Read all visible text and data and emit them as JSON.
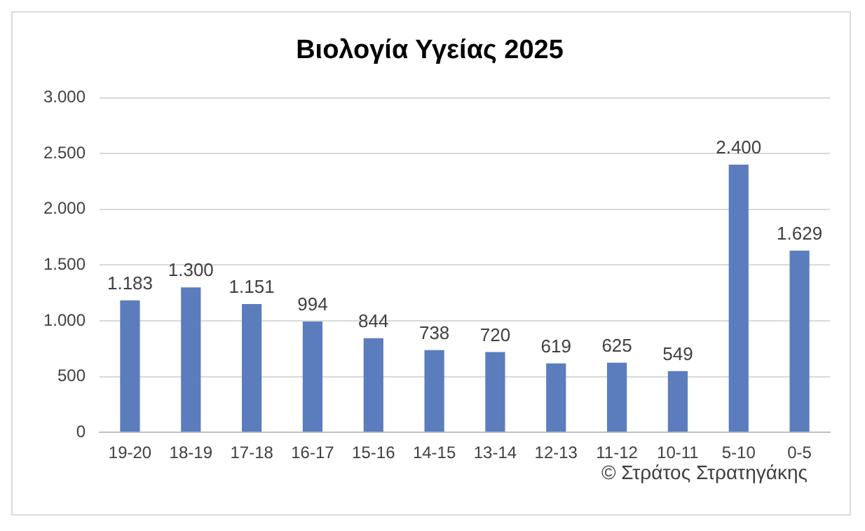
{
  "chart_data": {
    "type": "bar",
    "title": "Βιολογία Υγείας 2025",
    "categories": [
      "19-20",
      "18-19",
      "17-18",
      "16-17",
      "15-16",
      "14-15",
      "13-14",
      "12-13",
      "11-12",
      "10-11",
      "5-10",
      "0-5"
    ],
    "values": [
      1183,
      1300,
      1151,
      994,
      844,
      738,
      720,
      619,
      625,
      549,
      2400,
      1629
    ],
    "value_labels": [
      "1.183",
      "1.300",
      "1.151",
      "994",
      "844",
      "738",
      "720",
      "619",
      "625",
      "549",
      "2.400",
      "1.629"
    ],
    "color": "#5b7dbd",
    "ylim": [
      0,
      3000
    ],
    "yticks": [
      {
        "value": 0,
        "label": "0"
      },
      {
        "value": 500,
        "label": "500"
      },
      {
        "value": 1000,
        "label": "1.000"
      },
      {
        "value": 1500,
        "label": "1.500"
      },
      {
        "value": 2000,
        "label": "2.000"
      },
      {
        "value": 2500,
        "label": "2.500"
      },
      {
        "value": 3000,
        "label": "3.000"
      }
    ],
    "grid": "y",
    "annotations": [
      "© Στράτος Στρατηγάκης"
    ]
  }
}
